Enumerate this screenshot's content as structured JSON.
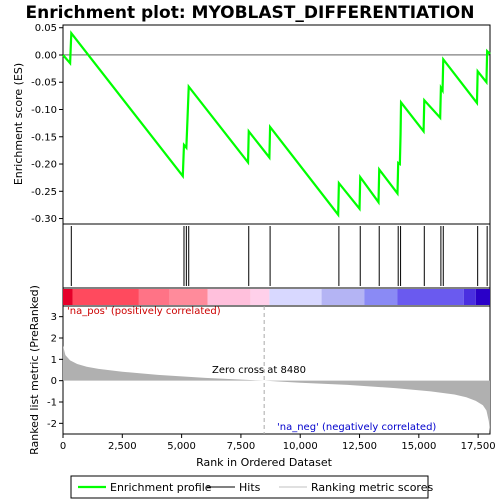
{
  "chart_data": {
    "type": "line",
    "title": "Enrichment plot: MYOBLAST_DIFFERENTIATION",
    "x_label": "Rank in Ordered Dataset",
    "es_panel": {
      "ylabel": "Enrichment score (ES)",
      "ylim": [
        -0.31,
        0.055
      ],
      "yticks": [
        0.05,
        0.0,
        -0.05,
        -0.1,
        -0.15,
        -0.2,
        -0.25,
        -0.3
      ],
      "ytick_labels": [
        "0.05",
        "0.00",
        "-0.05",
        "-0.10",
        "-0.15",
        "-0.20",
        "-0.25",
        "-0.30"
      ],
      "series": [
        {
          "name": "Enrichment profile",
          "color": "#00ff00",
          "x": [
            0,
            300,
            350,
            5050,
            5100,
            5200,
            5250,
            5300,
            7800,
            7830,
            8700,
            8730,
            11600,
            11630,
            12500,
            12530,
            13300,
            13330,
            14100,
            14130,
            14200,
            14230,
            14250,
            15200,
            15230,
            15900,
            15930,
            16000,
            16030,
            17450,
            17480,
            17850,
            17880,
            18000
          ],
          "y": [
            0.0,
            -0.015,
            0.04,
            -0.222,
            -0.165,
            -0.17,
            -0.115,
            -0.058,
            -0.197,
            -0.14,
            -0.188,
            -0.132,
            -0.293,
            -0.235,
            -0.282,
            -0.224,
            -0.27,
            -0.21,
            -0.254,
            -0.198,
            -0.2,
            -0.145,
            -0.087,
            -0.14,
            -0.083,
            -0.115,
            -0.06,
            -0.065,
            -0.008,
            -0.088,
            -0.03,
            -0.05,
            0.007,
            0.002
          ]
        }
      ]
    },
    "hits_panel": {
      "series_name": "Hits",
      "hits": [
        350,
        5100,
        5200,
        5300,
        7830,
        8730,
        11630,
        12530,
        13330,
        14130,
        14230,
        15230,
        15930,
        16030,
        17480,
        17880
      ]
    },
    "rank_panel": {
      "ylabel": "Ranked list metric (PreRanked)",
      "series_name": "Ranking metric scores",
      "ylim": [
        -2.5,
        3.5
      ],
      "yticks": [
        3,
        2,
        1,
        0,
        -1,
        -2
      ],
      "ytick_labels": [
        "3",
        "2",
        "1",
        "0",
        "-1",
        "-2"
      ],
      "profile_x": [
        0,
        100,
        300,
        600,
        1000,
        1500,
        2500,
        4000,
        6000,
        8480,
        10000,
        12000,
        14000,
        15500,
        16500,
        17000,
        17400,
        17700,
        17850,
        17950,
        18000
      ],
      "profile_y": [
        1.65,
        1.2,
        0.95,
        0.78,
        0.65,
        0.55,
        0.42,
        0.27,
        0.13,
        0.0,
        -0.1,
        -0.2,
        -0.35,
        -0.5,
        -0.65,
        -0.78,
        -0.95,
        -1.15,
        -1.4,
        -1.9,
        -2.4
      ],
      "zero_cross": 8480,
      "zero_cross_label": "Zero cross at 8480",
      "pos_label": "'na_pos' (positively correlated)",
      "neg_label": "'na_neg' (negatively correlated)"
    },
    "xlim": [
      0,
      18000
    ],
    "xticks": [
      0,
      2500,
      5000,
      7500,
      10000,
      12500,
      15000,
      17500
    ],
    "xtick_labels": [
      "0",
      "2,500",
      "5,000",
      "7,500",
      "10,000",
      "12,500",
      "15,000",
      "17,500"
    ],
    "color_bar": {
      "segments": [
        {
          "x0": 0,
          "x1": 400,
          "color": "#e5002a"
        },
        {
          "x0": 400,
          "x1": 3200,
          "color": "#ff4a5e"
        },
        {
          "x0": 3200,
          "x1": 4500,
          "color": "#ff7386"
        },
        {
          "x0": 4500,
          "x1": 6100,
          "color": "#ff8b9b"
        },
        {
          "x0": 6100,
          "x1": 7900,
          "color": "#ffc0dc"
        },
        {
          "x0": 7900,
          "x1": 8700,
          "color": "#ffd0ea"
        },
        {
          "x0": 8700,
          "x1": 10900,
          "color": "#d8d8ff"
        },
        {
          "x0": 10900,
          "x1": 12700,
          "color": "#b4b4f4"
        },
        {
          "x0": 12700,
          "x1": 14100,
          "color": "#8a8af5"
        },
        {
          "x0": 14100,
          "x1": 16900,
          "color": "#6a5aef"
        },
        {
          "x0": 16900,
          "x1": 17400,
          "color": "#4a2fe0"
        },
        {
          "x0": 17400,
          "x1": 18000,
          "color": "#2a00c8"
        }
      ]
    },
    "legend": {
      "placement": "bottom",
      "items": [
        {
          "label": "Enrichment profile",
          "color": "#00ff00",
          "kind": "line"
        },
        {
          "label": "Hits",
          "color": "#000000",
          "kind": "line"
        },
        {
          "label": "Ranking metric scores",
          "color": "#c0c0c0",
          "kind": "line"
        }
      ]
    },
    "colors": {
      "pos_text": "#cc0000",
      "neg_text": "#0000cc",
      "profile_fill": "#b0b0b0",
      "panel_bg": "#ffffff",
      "zero_cross_line": "#aaaaaa"
    }
  }
}
